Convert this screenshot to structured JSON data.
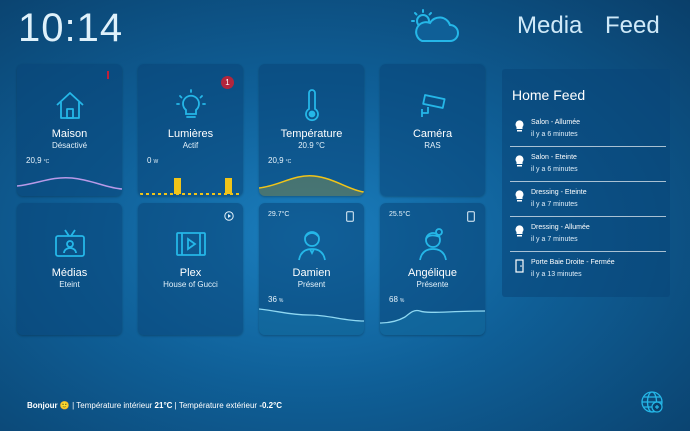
{
  "header": {
    "time": "10:14",
    "weather_icon": "partly-cloudy-icon",
    "nav": [
      "Media",
      "Feed"
    ]
  },
  "colors": {
    "accent_cyan": "#25b7e8",
    "accent_yellow": "#f0c419",
    "accent_purple": "#b89ae8",
    "badge_red": "#b2263d"
  },
  "cards": [
    {
      "title": "Maison",
      "subtitle": "Désactivé",
      "stat_value": "20,9",
      "stat_unit": "°C",
      "icon": "house-icon"
    },
    {
      "title": "Lumières",
      "subtitle": "Actif",
      "stat_value": "0",
      "stat_unit": "W",
      "badge": "1",
      "icon": "lightbulb-icon"
    },
    {
      "title": "Température",
      "subtitle": "20.9 °C",
      "stat_value": "20,9",
      "stat_unit": "°C",
      "icon": "thermometer-icon"
    },
    {
      "title": "Caméra",
      "subtitle": "RAS",
      "icon": "security-camera-icon"
    },
    {
      "title": "Médias",
      "subtitle": "Eteint",
      "icon": "media-icon"
    },
    {
      "title": "Plex",
      "subtitle": "House of Gucci",
      "icon": "film-icon"
    },
    {
      "title": "Damien",
      "subtitle": "Présent",
      "corner": "29.7°C",
      "stat_value": "36",
      "stat_unit": "%",
      "icon": "man-avatar-icon"
    },
    {
      "title": "Angélique",
      "subtitle": "Présente",
      "corner": "25.5°C",
      "stat_value": "68",
      "stat_unit": "%",
      "icon": "woman-avatar-icon"
    }
  ],
  "feed": {
    "title": "Home Feed",
    "items": [
      {
        "event": "Salon - Allumée",
        "time": "il y a 6 minutes",
        "icon": "lightbulb-on-icon"
      },
      {
        "event": "Salon - Eteinte",
        "time": "il y a 6 minutes",
        "icon": "lightbulb-off-icon"
      },
      {
        "event": "Dressing - Eteinte",
        "time": "il y a 7 minutes",
        "icon": "lightbulb-off-icon"
      },
      {
        "event": "Dressing - Allumée",
        "time": "il y a 7 minutes",
        "icon": "lightbulb-on-icon"
      },
      {
        "event": "Porte Baie Droite - Fermée",
        "time": "il y a 13 minutes",
        "icon": "door-icon"
      }
    ]
  },
  "footer": {
    "greeting": "Bonjour",
    "emoji": "🙂",
    "sep": "|",
    "indoor_label": "Température intérieur",
    "indoor_value": "21°C",
    "outdoor_label": "Température extérieur",
    "outdoor_value": "-0.2°C"
  }
}
